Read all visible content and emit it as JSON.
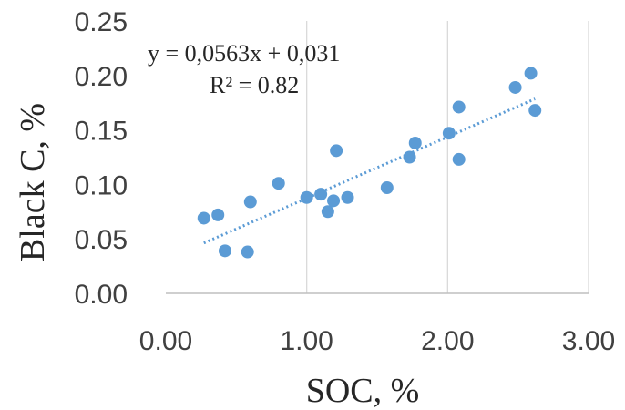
{
  "chart_data": {
    "type": "scatter",
    "xlabel": "SOC, %",
    "ylabel": "Black C, %",
    "xlim": [
      0,
      3
    ],
    "ylim": [
      0,
      0.25
    ],
    "x_ticks": [
      "0.00",
      "1.00",
      "2.00",
      "3.00"
    ],
    "y_ticks": [
      "0.00",
      "0.05",
      "0.10",
      "0.15",
      "0.20",
      "0.25"
    ],
    "grid": "vertical",
    "marker_color": "#5B9BD5",
    "trendline_color": "#5B9BD5",
    "points": [
      {
        "x": 0.27,
        "y": 0.069
      },
      {
        "x": 0.37,
        "y": 0.072
      },
      {
        "x": 0.42,
        "y": 0.039
      },
      {
        "x": 0.58,
        "y": 0.038
      },
      {
        "x": 0.6,
        "y": 0.084
      },
      {
        "x": 0.8,
        "y": 0.101
      },
      {
        "x": 1.0,
        "y": 0.088
      },
      {
        "x": 1.1,
        "y": 0.091
      },
      {
        "x": 1.15,
        "y": 0.075
      },
      {
        "x": 1.19,
        "y": 0.085
      },
      {
        "x": 1.21,
        "y": 0.131
      },
      {
        "x": 1.29,
        "y": 0.088
      },
      {
        "x": 1.57,
        "y": 0.097
      },
      {
        "x": 1.73,
        "y": 0.125
      },
      {
        "x": 1.77,
        "y": 0.138
      },
      {
        "x": 2.01,
        "y": 0.147
      },
      {
        "x": 2.08,
        "y": 0.171
      },
      {
        "x": 2.08,
        "y": 0.123
      },
      {
        "x": 2.48,
        "y": 0.189
      },
      {
        "x": 2.59,
        "y": 0.202
      },
      {
        "x": 2.62,
        "y": 0.168
      }
    ],
    "trendline": {
      "slope": 0.0563,
      "intercept": 0.031,
      "x_range": [
        0.27,
        2.62
      ],
      "equation": "y = 0,0563x + 0,031",
      "r_squared": "R² = 0.82"
    }
  }
}
